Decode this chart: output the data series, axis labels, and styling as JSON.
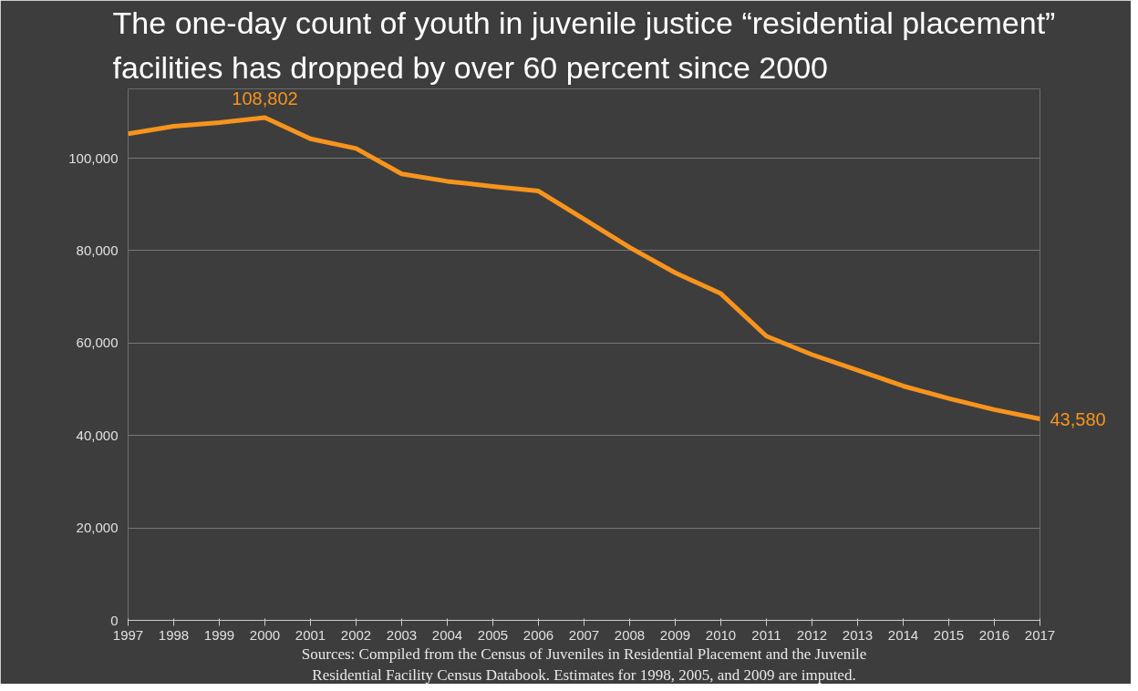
{
  "chart_data": {
    "type": "line",
    "title": "The one-day count of youth in juvenile justice “residential placement”\nfacilities has dropped by over 60 percent since 2000",
    "x": [
      1997,
      1998,
      1999,
      2000,
      2001,
      2002,
      2003,
      2004,
      2005,
      2006,
      2007,
      2008,
      2009,
      2010,
      2011,
      2012,
      2013,
      2014,
      2015,
      2016,
      2017
    ],
    "series": [
      {
        "color": "#f7941d",
        "values": [
          105300,
          106900,
          107700,
          108802,
          104200,
          102100,
          96600,
          95000,
          93900,
          92900,
          86800,
          80700,
          75200,
          70700,
          61500,
          57500,
          54100,
          50700,
          48000,
          45600,
          43580
        ]
      }
    ],
    "xlim": [
      1997,
      2017
    ],
    "xticks": [
      1997,
      1998,
      1999,
      2000,
      2001,
      2002,
      2003,
      2004,
      2005,
      2006,
      2007,
      2008,
      2009,
      2010,
      2011,
      2012,
      2013,
      2014,
      2015,
      2016,
      2017
    ],
    "ylim": [
      0,
      115000
    ],
    "yticks": [
      0,
      {
        "value": 20000,
        "label": "20,000"
      },
      {
        "value": 40000,
        "label": "40,000"
      },
      {
        "value": 60000,
        "label": "60,000"
      },
      {
        "value": 80000,
        "label": "80,000"
      },
      {
        "value": 100000,
        "label": "100,000"
      }
    ],
    "grid": "y",
    "marker": "none",
    "line_style": "solid",
    "annotations": [
      {
        "text": "108,802",
        "x": 2000,
        "y": 108802
      },
      {
        "text": "43,580",
        "x": 2017,
        "y": 43580
      },
      "Sources: Compiled from the Census of Juveniles in Residential Placement and the Juvenile Residential Facility Census Databook. Estimates for 1998, 2005, and 2009 are imputed."
    ]
  }
}
